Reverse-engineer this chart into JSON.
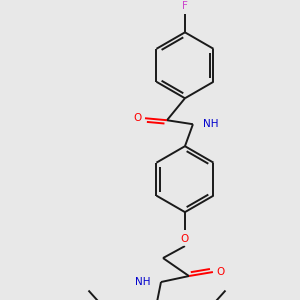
{
  "background_color": "#e8e8e8",
  "bond_color": "#1a1a1a",
  "atom_colors": {
    "O": "#ff0000",
    "N": "#0000cc",
    "F": "#cc44cc",
    "C": "#1a1a1a"
  },
  "figsize": [
    3.0,
    3.0
  ],
  "dpi": 100,
  "xlim": [
    0,
    300
  ],
  "ylim": [
    0,
    300
  ]
}
